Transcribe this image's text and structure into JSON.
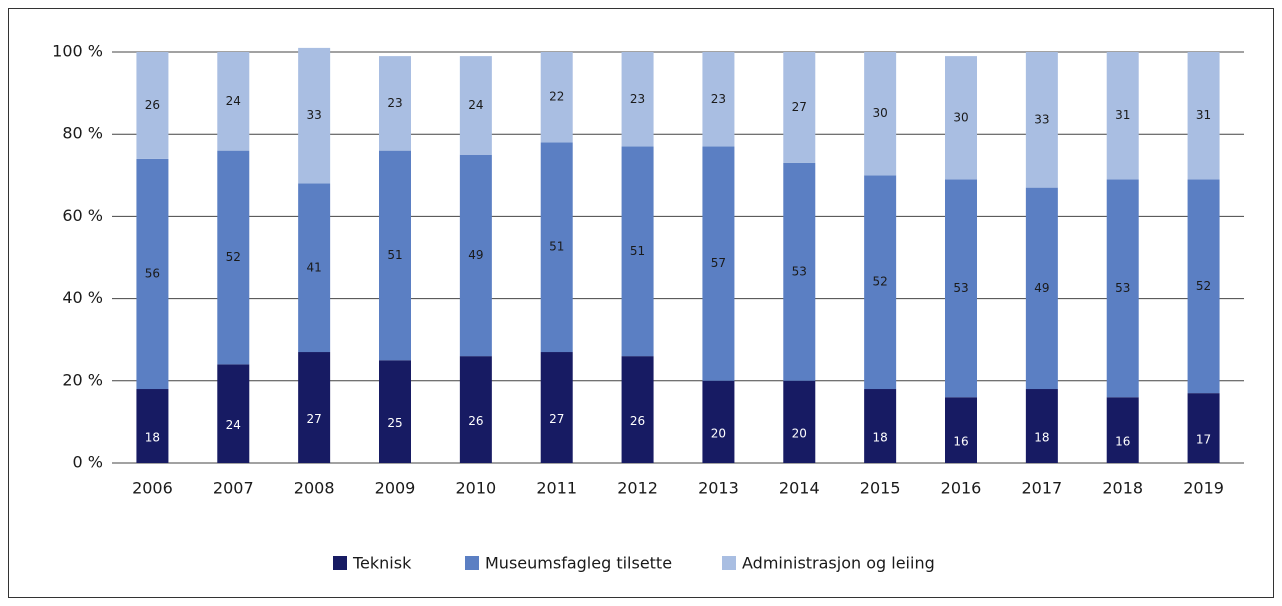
{
  "chart_data": {
    "type": "bar",
    "stacked": true,
    "categories": [
      "2006",
      "2007",
      "2008",
      "2009",
      "2010",
      "2011",
      "2012",
      "2013",
      "2014",
      "2015",
      "2016",
      "2017",
      "2018",
      "2019"
    ],
    "series": [
      {
        "name": "Teknisk",
        "color": "#171b63",
        "values": [
          18,
          24,
          27,
          25,
          26,
          27,
          26,
          20,
          20,
          18,
          16,
          18,
          16,
          17
        ]
      },
      {
        "name": "Museumsfagleg tilsette",
        "color": "#5b7fc3",
        "values": [
          56,
          52,
          41,
          51,
          49,
          51,
          51,
          57,
          53,
          52,
          53,
          49,
          53,
          52
        ]
      },
      {
        "name": "Administrasjon og leiing",
        "color": "#a9bee2",
        "values": [
          26,
          24,
          33,
          23,
          24,
          22,
          23,
          23,
          27,
          30,
          30,
          33,
          31,
          31
        ]
      }
    ],
    "ylim": [
      0,
      100
    ],
    "yticks": [
      {
        "value": 0,
        "label": "0 %"
      },
      {
        "value": 20,
        "label": "20 %"
      },
      {
        "value": 40,
        "label": "40 %"
      },
      {
        "value": 60,
        "label": "60 %"
      },
      {
        "value": 80,
        "label": "80 %"
      },
      {
        "value": 100,
        "label": "100 %"
      }
    ],
    "grid": true,
    "legend": "bottom"
  }
}
